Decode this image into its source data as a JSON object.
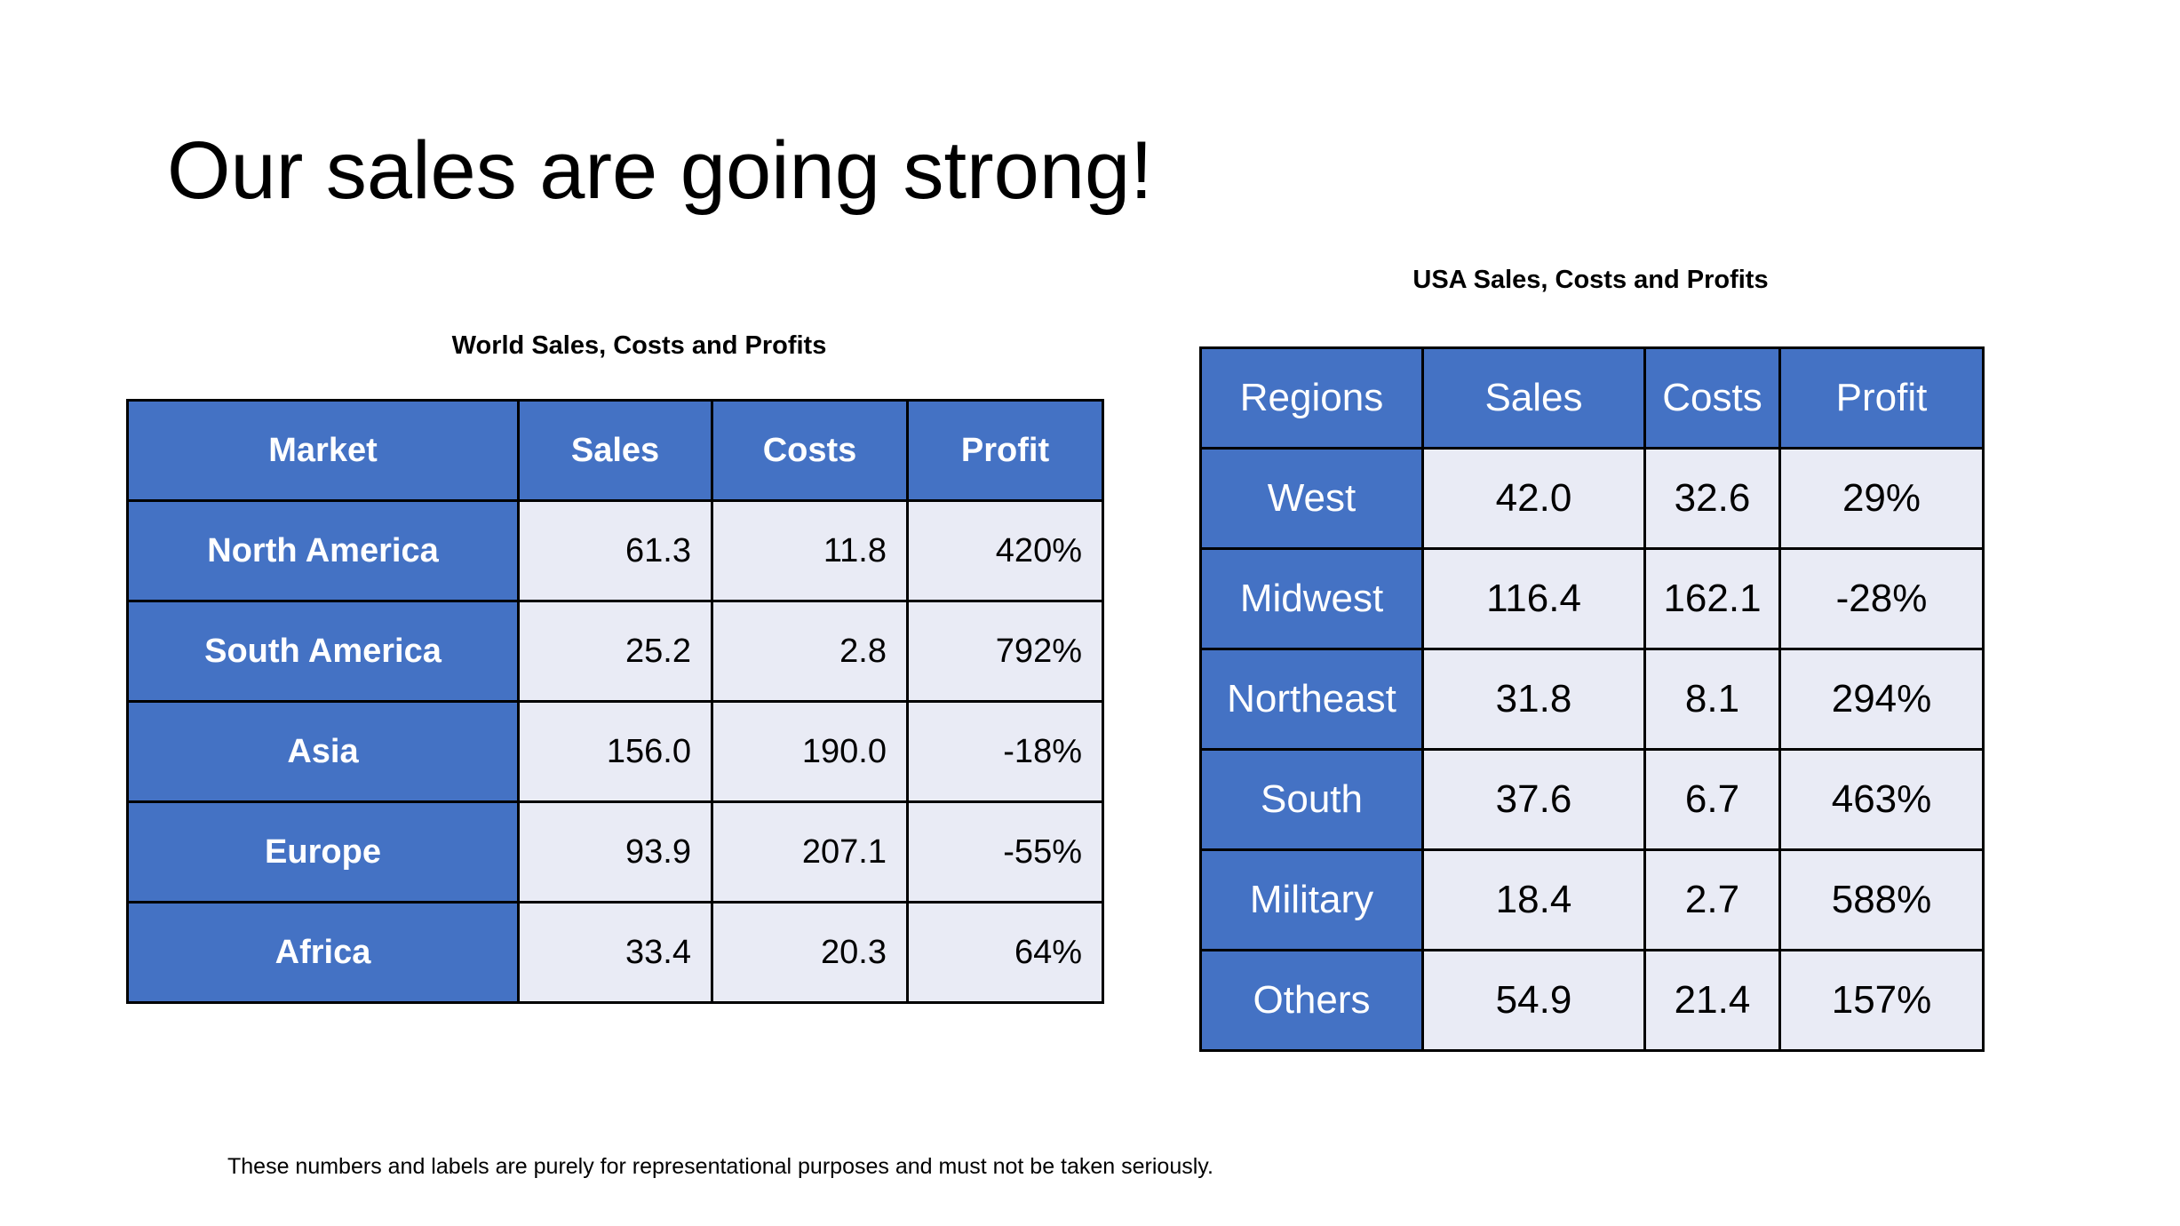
{
  "slide": {
    "title": "Our sales are going strong!",
    "footnote": "These numbers and labels are purely for representational purposes and must not be taken seriously."
  },
  "world": {
    "caption": "World Sales, Costs and Profits",
    "headers": [
      "Market",
      "Sales",
      "Costs",
      "Profit"
    ],
    "rows": [
      [
        "North America",
        "61.3",
        "11.8",
        "420%"
      ],
      [
        "South America",
        "25.2",
        "2.8",
        "792%"
      ],
      [
        "Asia",
        "156.0",
        "190.0",
        "-18%"
      ],
      [
        "Europe",
        "93.9",
        "207.1",
        "-55%"
      ],
      [
        "Africa",
        "33.4",
        "20.3",
        "64%"
      ]
    ]
  },
  "usa": {
    "caption": "USA Sales, Costs and Profits",
    "headers": [
      "Regions",
      "Sales",
      "Costs",
      "Profit"
    ],
    "rows": [
      [
        "West",
        "42.0",
        "32.6",
        "29%"
      ],
      [
        "Midwest",
        "116.4",
        "162.1",
        "-28%"
      ],
      [
        "Northeast",
        "31.8",
        "8.1",
        "294%"
      ],
      [
        "South",
        "37.6",
        "6.7",
        "463%"
      ],
      [
        "Military",
        "18.4",
        "2.7",
        "588%"
      ],
      [
        "Others",
        "54.9",
        "21.4",
        "157%"
      ]
    ]
  },
  "colors": {
    "header": "#4472C4",
    "cell": "#E9EBF5"
  }
}
